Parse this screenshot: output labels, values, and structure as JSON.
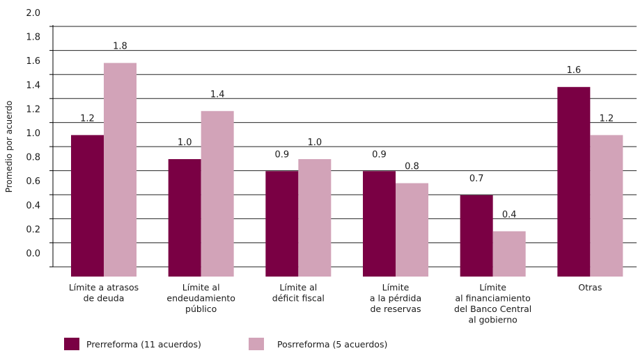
{
  "chart_data": {
    "type": "bar",
    "title": "",
    "xlabel": "",
    "ylabel": "Promedio por acuerdo",
    "ylim": [
      0,
      2.0
    ],
    "yticks": [
      "2.0",
      "1.8",
      "1.6",
      "1.4",
      "1.2",
      "1.0",
      "0.8",
      "0.6",
      "0.4",
      "0.2",
      "0.0"
    ],
    "categories": [
      [
        "Límite a atrasos",
        "de deuda"
      ],
      [
        "Límite al",
        "endeudamiento",
        "público"
      ],
      [
        "Límite al",
        "déficit fiscal"
      ],
      [
        "Límite",
        "a la pérdida",
        "de reservas"
      ],
      [
        "Límite",
        "al financiamiento",
        "del Banco Central",
        "al gobierno"
      ],
      [
        "Otras"
      ]
    ],
    "series": [
      {
        "name": "Prerreforma (11 acuerdos)",
        "color": "#7a0044",
        "values": [
          1.2,
          1.0,
          0.9,
          0.9,
          0.7,
          1.6
        ],
        "labels": [
          "1.2",
          "1.0",
          "0.9",
          "0.9",
          "0.7",
          "1.6"
        ]
      },
      {
        "name": "Posrreforma (5 acuerdos)",
        "color": "#d2a3b8",
        "values": [
          1.8,
          1.4,
          1.0,
          0.8,
          0.4,
          1.2
        ],
        "labels": [
          "1.8",
          "1.4",
          "1.0",
          "0.8",
          "0.4",
          "1.2"
        ]
      }
    ],
    "grid": true,
    "legend": "bottom"
  }
}
